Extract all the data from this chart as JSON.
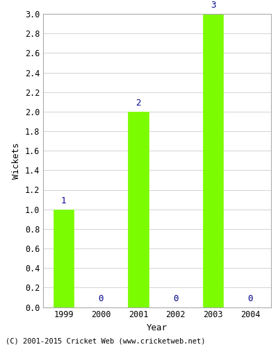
{
  "years": [
    1999,
    2000,
    2001,
    2002,
    2003,
    2004
  ],
  "wickets": [
    1,
    0,
    2,
    0,
    3,
    0
  ],
  "bar_color": "#7CFC00",
  "bar_edge_color": "#7CFC00",
  "label_color": "#00008B",
  "xlabel": "Year",
  "ylabel": "Wickets",
  "ylim": [
    0.0,
    3.0
  ],
  "yticks": [
    0.0,
    0.2,
    0.4,
    0.6,
    0.8,
    1.0,
    1.2,
    1.4,
    1.6,
    1.8,
    2.0,
    2.2,
    2.4,
    2.6,
    2.8,
    3.0
  ],
  "background_color": "#ffffff",
  "grid_color": "#cccccc",
  "footer_text": "(C) 2001-2015 Cricket Web (www.cricketweb.net)",
  "bar_width": 0.55,
  "spine_color": "#aaaaaa",
  "tick_label_fontsize": 8.5,
  "axis_label_fontsize": 9,
  "value_label_fontsize": 9
}
